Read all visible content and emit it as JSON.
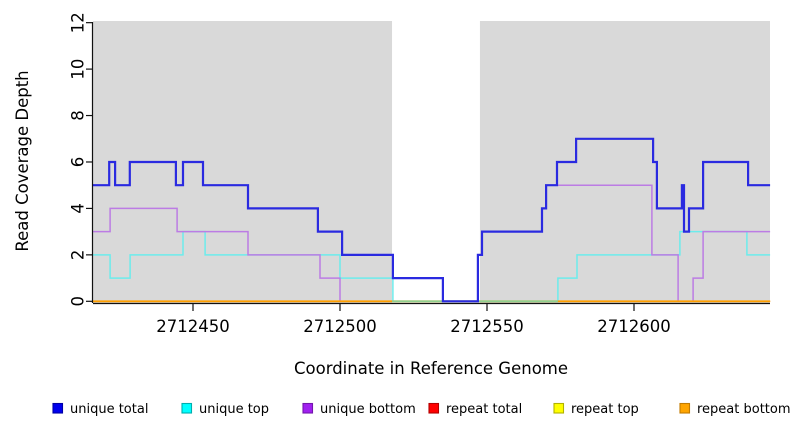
{
  "figure": {
    "xlabel": "Coordinate in Reference Genome",
    "ylabel": "Read Coverage Depth"
  },
  "chart_data": {
    "type": "line",
    "subtype": "step-coverage-plot",
    "title": "",
    "xlabel": "Coordinate in Reference Genome",
    "ylabel": "Read Coverage Depth",
    "xlim": [
      2712416,
      2712646
    ],
    "ylim": [
      0,
      12
    ],
    "x_ticks": [
      2712450,
      2712500,
      2712550,
      2712600
    ],
    "y_ticks": [
      0,
      2,
      4,
      6,
      8,
      10,
      12
    ],
    "grid": "off",
    "plot_background": "#d9d9d9",
    "no_data_region": {
      "from": 2712517.7,
      "to": 2712547.6,
      "color": "#ffffff"
    },
    "zero_overlap_segment": {
      "from": 2712517.7,
      "to": 2712574.1,
      "value": 0,
      "color": "#8fd08f",
      "note": "unique-top at depth 0 blended over repeat lines"
    },
    "series": [
      {
        "name": "repeat total",
        "color": "#e00000",
        "width": 1.4,
        "steps": [
          [
            2712416,
            0
          ]
        ],
        "end": 2712646.3
      },
      {
        "name": "repeat top",
        "color": "#f5f500",
        "width": 1.4,
        "steps": [
          [
            2712416,
            0
          ]
        ],
        "end": 2712646.3
      },
      {
        "name": "unique top",
        "color": "#6cecec",
        "width": 1.5,
        "steps": [
          [
            2712416,
            2
          ],
          [
            2712421.8,
            1
          ],
          [
            2712428.6,
            2
          ],
          [
            2712446.6,
            3
          ],
          [
            2712454.1,
            2
          ],
          [
            2712500,
            1
          ],
          [
            2712518,
            0
          ],
          [
            2712574.1,
            1
          ],
          [
            2712580.6,
            2
          ],
          [
            2712615.6,
            3
          ],
          [
            2712638.4,
            2
          ]
        ],
        "end": 2712646.3
      },
      {
        "name": "unique bottom",
        "color": "#bc7ce4",
        "width": 1.5,
        "steps": [
          [
            2712416,
            3
          ],
          [
            2712421.8,
            4
          ],
          [
            2712444.6,
            3
          ],
          [
            2712468.7,
            2
          ],
          [
            2712493.2,
            1
          ],
          [
            2712500,
            0
          ],
          [
            2712546.9,
            2
          ],
          [
            2712548.3,
            3
          ],
          [
            2712568.7,
            4
          ],
          [
            2712570.1,
            5
          ],
          [
            2712606.1,
            2
          ],
          [
            2712615,
            0
          ],
          [
            2712620.1,
            1
          ],
          [
            2712623.5,
            3
          ]
        ],
        "end": 2712646.3
      },
      {
        "name": "repeat bottom",
        "color": "#ff9f00",
        "width": 1.8,
        "steps": [
          [
            2712416,
            0
          ]
        ],
        "end": 2712646.3
      },
      {
        "name": "unique total",
        "color": "#2a2ae0",
        "width": 2.2,
        "steps": [
          [
            2712416,
            5
          ],
          [
            2712421.5,
            6
          ],
          [
            2712423.5,
            5
          ],
          [
            2712428.5,
            6
          ],
          [
            2712444.2,
            5
          ],
          [
            2712446.6,
            6
          ],
          [
            2712453.4,
            5
          ],
          [
            2712468.7,
            4
          ],
          [
            2712492.5,
            3
          ],
          [
            2712500.7,
            2
          ],
          [
            2712518,
            1
          ],
          [
            2712535,
            0
          ],
          [
            2712546.9,
            2
          ],
          [
            2712548.3,
            3
          ],
          [
            2712568.7,
            4
          ],
          [
            2712570.1,
            5
          ],
          [
            2712573.8,
            6
          ],
          [
            2712580.3,
            7
          ],
          [
            2712606.5,
            6
          ],
          [
            2712607.8,
            4
          ],
          [
            2712616.3,
            5
          ],
          [
            2712617,
            3
          ],
          [
            2712618.7,
            4
          ],
          [
            2712623.5,
            6
          ],
          [
            2712638.8,
            5
          ]
        ],
        "end": 2712646.3
      }
    ]
  },
  "legend": {
    "position": "bottom",
    "entries": [
      {
        "label": "unique total",
        "fill": "#0000ee",
        "border": "#0000a6"
      },
      {
        "label": "unique top",
        "fill": "#00ffff",
        "border": "#00aeae"
      },
      {
        "label": "unique bottom",
        "fill": "#a020f0",
        "border": "#7316ad"
      },
      {
        "label": "repeat total",
        "fill": "#ff0000",
        "border": "#b20000"
      },
      {
        "label": "repeat top",
        "fill": "#ffff00",
        "border": "#b2b200"
      },
      {
        "label": "repeat bottom",
        "fill": "#ffa500",
        "border": "#c27b00"
      }
    ]
  }
}
